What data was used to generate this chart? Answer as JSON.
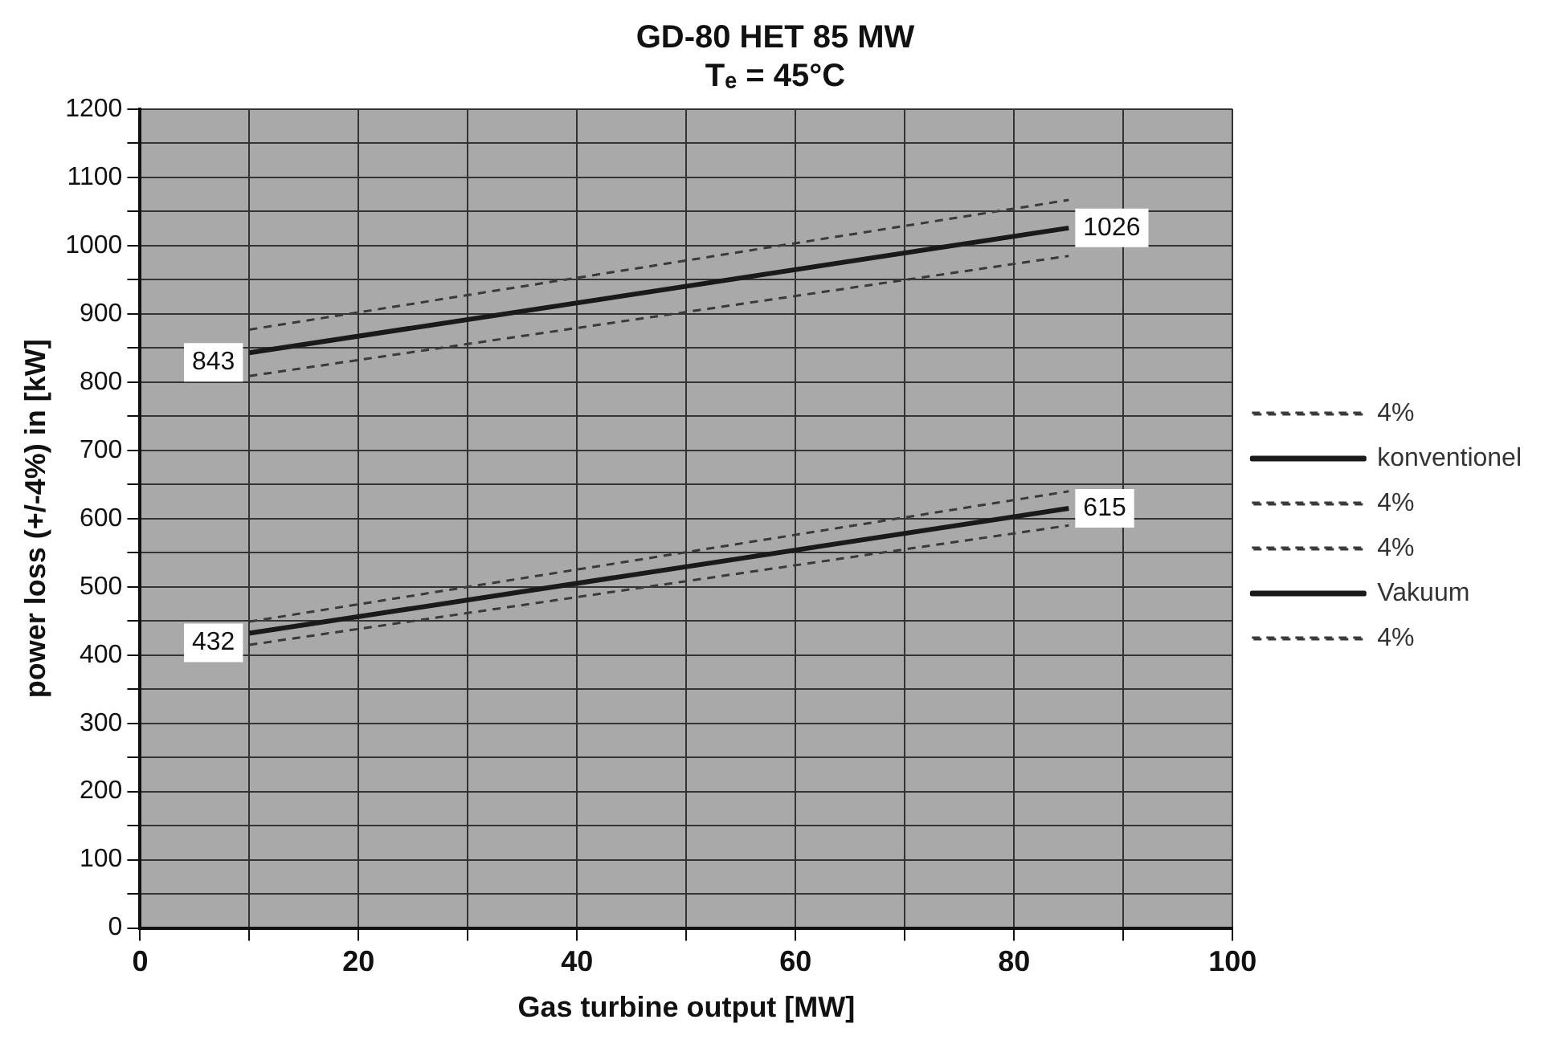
{
  "chart_data": {
    "type": "line",
    "title": "GD-80 HET 85 MW",
    "subtitle": "Tₑ = 45°C",
    "xlabel": "Gas turbine output [MW]",
    "ylabel": "power loss (+/-4%) in [kW]",
    "x": [
      10,
      85
    ],
    "series": [
      {
        "name": "4%",
        "color": "#3a3a3a",
        "line_style": "dashed",
        "values": [
          877,
          1067
        ]
      },
      {
        "name": "konventionel",
        "color": "#1a1a1a",
        "line_style": "solid",
        "values": [
          843,
          1026
        ],
        "value_labels": [
          "843",
          "1026"
        ]
      },
      {
        "name": "4%",
        "color": "#3a3a3a",
        "line_style": "dashed",
        "values": [
          809,
          985
        ]
      },
      {
        "name": "4%",
        "color": "#3a3a3a",
        "line_style": "dashed",
        "values": [
          449,
          640
        ]
      },
      {
        "name": "Vakuum",
        "color": "#1a1a1a",
        "line_style": "solid",
        "values": [
          432,
          615
        ],
        "value_labels": [
          "432",
          "615"
        ]
      },
      {
        "name": "4%",
        "color": "#3a3a3a",
        "line_style": "dashed",
        "values": [
          415,
          590
        ]
      }
    ],
    "xlim": [
      0,
      100
    ],
    "xticks": [
      0,
      {
        "value": 10,
        "label": null
      },
      20,
      {
        "value": 30,
        "label": null
      },
      40,
      {
        "value": 50,
        "label": null
      },
      60,
      {
        "value": 70,
        "label": null
      },
      80,
      {
        "value": 90,
        "label": null
      },
      100
    ],
    "ylim": [
      0,
      1200
    ],
    "yticks": [
      0,
      {
        "value": 50,
        "label": null
      },
      100,
      {
        "value": 150,
        "label": null
      },
      200,
      {
        "value": 250,
        "label": null
      },
      300,
      {
        "value": 350,
        "label": null
      },
      400,
      {
        "value": 450,
        "label": null
      },
      500,
      {
        "value": 550,
        "label": null
      },
      600,
      {
        "value": 650,
        "label": null
      },
      700,
      {
        "value": 750,
        "label": null
      },
      800,
      {
        "value": 850,
        "label": null
      },
      900,
      {
        "value": 950,
        "label": null
      },
      1000,
      {
        "value": 1050,
        "label": null
      },
      1100,
      {
        "value": 1150,
        "label": null
      },
      1200
    ],
    "grid": true,
    "legend": "right",
    "marker": "none"
  }
}
